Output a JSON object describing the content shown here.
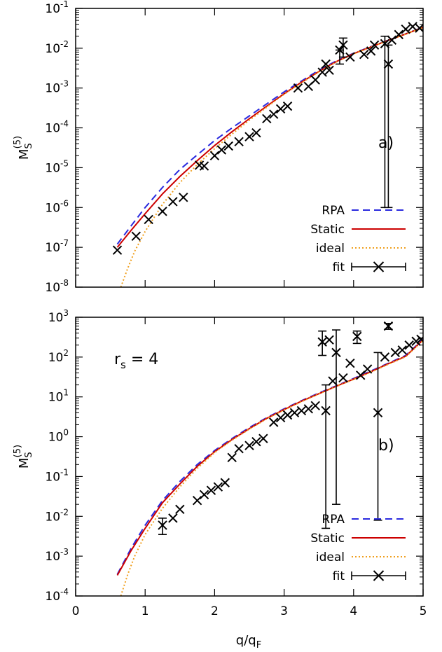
{
  "xlabel": {
    "main": "q/q",
    "sub": "F"
  },
  "ylabel": {
    "main": "M",
    "sub": "S",
    "sup": "(5)"
  },
  "legend": [
    {
      "label": "RPA",
      "color": "#2a2adf",
      "style": "dashed"
    },
    {
      "label": "Static",
      "color": "#cc0000",
      "style": "solid"
    },
    {
      "label": "ideal",
      "color": "#f0a020",
      "style": "dotted"
    },
    {
      "label": "fit",
      "color": "#000000",
      "style": "errorbar"
    }
  ],
  "chart_data": [
    {
      "type": "line",
      "panel_label": "a)",
      "annotation": "",
      "xscale": "linear",
      "yscale": "log",
      "xlim": [
        0,
        5
      ],
      "ylim": [
        1e-08,
        0.1
      ],
      "xticks": [
        0,
        1,
        2,
        3,
        4,
        5
      ],
      "yticks": [
        {
          "base": "10",
          "exp": "-8"
        },
        {
          "base": "10",
          "exp": "-7"
        },
        {
          "base": "10",
          "exp": "-6"
        },
        {
          "base": "10",
          "exp": "-5"
        },
        {
          "base": "10",
          "exp": "-4"
        },
        {
          "base": "10",
          "exp": "-3"
        },
        {
          "base": "10",
          "exp": "-2"
        },
        {
          "base": "10",
          "exp": "-1"
        }
      ],
      "show_xtick_labels": false,
      "legend_position": "bottom-right",
      "series": [
        {
          "name": "RPA",
          "style": "dashed",
          "x": [
            0.6,
            0.8,
            1.0,
            1.25,
            1.5,
            1.75,
            2.0,
            2.25,
            2.5,
            2.75,
            3.0,
            3.25,
            3.5,
            3.75,
            4.0,
            4.25,
            4.5,
            4.75,
            5.0
          ],
          "y": [
            1.2e-07,
            3.5e-07,
            1e-06,
            3.2e-06,
            9e-06,
            2.1e-05,
            4.8e-05,
            0.0001,
            0.0002,
            0.0004,
            0.0008,
            0.0015,
            0.0028,
            0.0048,
            0.0075,
            0.011,
            0.016,
            0.023,
            0.034
          ]
        },
        {
          "name": "Static",
          "style": "solid",
          "x": [
            0.6,
            0.8,
            1.0,
            1.25,
            1.5,
            1.75,
            2.0,
            2.25,
            2.5,
            2.75,
            3.0,
            3.25,
            3.5,
            3.75,
            4.0,
            4.25,
            4.5,
            4.75,
            5.0
          ],
          "y": [
            1e-07,
            2.7e-07,
            7e-07,
            2.2e-06,
            6e-06,
            1.5e-05,
            3.6e-05,
            8e-05,
            0.00017,
            0.00035,
            0.00072,
            0.0014,
            0.0026,
            0.0046,
            0.0073,
            0.0108,
            0.0158,
            0.0228,
            0.0335
          ]
        },
        {
          "name": "ideal",
          "style": "dotted",
          "x": [
            0.65,
            0.75,
            0.85,
            1.0,
            1.25,
            1.5,
            1.75,
            2.0,
            2.25,
            2.5,
            2.75,
            3.0,
            3.25,
            3.5,
            3.75,
            4.0,
            4.25,
            4.5,
            4.75,
            5.0
          ],
          "y": [
            1e-08,
            3e-08,
            8e-08,
            2.5e-07,
            1.2e-06,
            4.2e-06,
            1.2e-05,
            3e-05,
            7e-05,
            0.000155,
            0.00033,
            0.0007,
            0.00135,
            0.00255,
            0.0045,
            0.0072,
            0.0107,
            0.0157,
            0.0227,
            0.0335
          ]
        },
        {
          "name": "fit",
          "style": "errorbar",
          "points": [
            {
              "x": 0.6,
              "y": 8.5e-08
            },
            {
              "x": 0.87,
              "y": 1.9e-07
            },
            {
              "x": 1.05,
              "y": 5e-07
            },
            {
              "x": 1.25,
              "y": 8e-07
            },
            {
              "x": 1.4,
              "y": 1.4e-06
            },
            {
              "x": 1.55,
              "y": 1.8e-06
            },
            {
              "x": 1.78,
              "y": 1.15e-05
            },
            {
              "x": 1.85,
              "y": 1.1e-05
            },
            {
              "x": 2.0,
              "y": 2e-05
            },
            {
              "x": 2.1,
              "y": 2.8e-05
            },
            {
              "x": 2.2,
              "y": 3.5e-05
            },
            {
              "x": 2.35,
              "y": 4.5e-05
            },
            {
              "x": 2.5,
              "y": 6e-05
            },
            {
              "x": 2.6,
              "y": 7.5e-05
            },
            {
              "x": 2.75,
              "y": 0.00017
            },
            {
              "x": 2.85,
              "y": 0.00022
            },
            {
              "x": 2.95,
              "y": 0.0003
            },
            {
              "x": 3.05,
              "y": 0.00035
            },
            {
              "x": 3.2,
              "y": 0.001
            },
            {
              "x": 3.35,
              "y": 0.0011
            },
            {
              "x": 3.45,
              "y": 0.0016
            },
            {
              "x": 3.55,
              "y": 0.0025
            },
            {
              "x": 3.6,
              "y": 0.004
            },
            {
              "x": 3.65,
              "y": 0.0028
            },
            {
              "x": 3.8,
              "y": 0.009,
              "yerr": [
                0.004,
                0.009
              ]
            },
            {
              "x": 3.85,
              "y": 0.012,
              "yerr": [
                0.006,
                0.018
              ]
            },
            {
              "x": 3.95,
              "y": 0.006
            },
            {
              "x": 4.15,
              "y": 0.007
            },
            {
              "x": 4.25,
              "y": 0.0085
            },
            {
              "x": 4.3,
              "y": 0.012
            },
            {
              "x": 4.45,
              "y": 0.013,
              "yerr": [
                1e-06,
                0.02
              ]
            },
            {
              "x": 4.5,
              "y": 0.004,
              "yerr": [
                1e-06,
                0.012
              ]
            },
            {
              "x": 4.55,
              "y": 0.016
            },
            {
              "x": 4.65,
              "y": 0.022
            },
            {
              "x": 4.75,
              "y": 0.03
            },
            {
              "x": 4.85,
              "y": 0.035
            },
            {
              "x": 4.95,
              "y": 0.032
            }
          ]
        }
      ]
    },
    {
      "type": "line",
      "panel_label": "b)",
      "annotation": "rs = 4",
      "xscale": "linear",
      "yscale": "log",
      "xlim": [
        0,
        5
      ],
      "ylim": [
        0.0001,
        1000
      ],
      "xticks": [
        0,
        1,
        2,
        3,
        4,
        5
      ],
      "yticks": [
        {
          "base": "10",
          "exp": "-4"
        },
        {
          "base": "10",
          "exp": "-3"
        },
        {
          "base": "10",
          "exp": "-2"
        },
        {
          "base": "10",
          "exp": "-1"
        },
        {
          "base": "10",
          "exp": "0"
        },
        {
          "base": "10",
          "exp": "1"
        },
        {
          "base": "10",
          "exp": "2"
        },
        {
          "base": "10",
          "exp": "3"
        }
      ],
      "show_xtick_labels": true,
      "legend_position": "bottom-right",
      "series": [
        {
          "name": "RPA",
          "style": "dashed",
          "x": [
            0.6,
            0.8,
            1.0,
            1.25,
            1.5,
            1.75,
            2.0,
            2.25,
            2.5,
            2.75,
            3.0,
            3.25,
            3.5,
            3.75,
            4.0,
            4.25,
            4.5,
            4.75,
            5.0
          ],
          "y": [
            0.00035,
            0.0016,
            0.006,
            0.025,
            0.075,
            0.2,
            0.45,
            0.9,
            1.7,
            3.0,
            5.0,
            8.0,
            12.5,
            19,
            29,
            45,
            70,
            110,
            280
          ]
        },
        {
          "name": "Static",
          "style": "solid",
          "x": [
            0.6,
            0.8,
            1.0,
            1.25,
            1.5,
            1.75,
            2.0,
            2.25,
            2.5,
            2.75,
            3.0,
            3.25,
            3.5,
            3.75,
            4.0,
            4.25,
            4.5,
            4.75,
            5.0
          ],
          "y": [
            0.00033,
            0.0014,
            0.005,
            0.022,
            0.065,
            0.18,
            0.42,
            0.85,
            1.6,
            2.9,
            4.8,
            7.8,
            12,
            18.5,
            28,
            43,
            68,
            105,
            270
          ]
        },
        {
          "name": "ideal",
          "style": "dotted",
          "x": [
            0.65,
            0.75,
            0.85,
            1.0,
            1.25,
            1.5,
            1.75,
            2.0,
            2.25,
            2.5,
            2.75,
            3.0,
            3.25,
            3.5,
            3.75,
            4.0,
            4.25,
            4.5,
            4.75,
            5.0
          ],
          "y": [
            0.0001,
            0.00035,
            0.001,
            0.0035,
            0.016,
            0.055,
            0.16,
            0.4,
            0.82,
            1.55,
            2.8,
            4.7,
            7.6,
            11.8,
            18.2,
            27.5,
            42,
            66,
            102,
            260
          ]
        },
        {
          "name": "fit",
          "style": "errorbar",
          "points": [
            {
              "x": 1.25,
              "y": 0.006,
              "yerr": [
                0.0035,
                0.009
              ]
            },
            {
              "x": 1.4,
              "y": 0.009
            },
            {
              "x": 1.5,
              "y": 0.015
            },
            {
              "x": 1.75,
              "y": 0.025
            },
            {
              "x": 1.85,
              "y": 0.035
            },
            {
              "x": 1.95,
              "y": 0.045
            },
            {
              "x": 2.05,
              "y": 0.055
            },
            {
              "x": 2.15,
              "y": 0.07
            },
            {
              "x": 2.25,
              "y": 0.3
            },
            {
              "x": 2.35,
              "y": 0.5
            },
            {
              "x": 2.5,
              "y": 0.6
            },
            {
              "x": 2.6,
              "y": 0.75
            },
            {
              "x": 2.7,
              "y": 0.9
            },
            {
              "x": 2.85,
              "y": 2.3
            },
            {
              "x": 2.95,
              "y": 3.0
            },
            {
              "x": 3.05,
              "y": 3.5
            },
            {
              "x": 3.15,
              "y": 4.0
            },
            {
              "x": 3.25,
              "y": 4.5
            },
            {
              "x": 3.35,
              "y": 5.0
            },
            {
              "x": 3.45,
              "y": 6.0
            },
            {
              "x": 3.55,
              "y": 240,
              "yerr": [
                110,
                450
              ]
            },
            {
              "x": 3.6,
              "y": 4.5,
              "yerr": [
                0.005,
                20
              ]
            },
            {
              "x": 3.65,
              "y": 270
            },
            {
              "x": 3.7,
              "y": 25
            },
            {
              "x": 3.75,
              "y": 130,
              "yerr": [
                0.02,
                480
              ]
            },
            {
              "x": 3.85,
              "y": 30
            },
            {
              "x": 3.95,
              "y": 70
            },
            {
              "x": 4.05,
              "y": 330,
              "yerr": [
                220,
                450
              ]
            },
            {
              "x": 4.1,
              "y": 35
            },
            {
              "x": 4.2,
              "y": 50
            },
            {
              "x": 4.35,
              "y": 4.0,
              "yerr": [
                0.008,
                130
              ]
            },
            {
              "x": 4.45,
              "y": 100
            },
            {
              "x": 4.5,
              "y": 600,
              "yerr": [
                500,
                700
              ]
            },
            {
              "x": 4.6,
              "y": 130
            },
            {
              "x": 4.7,
              "y": 150
            },
            {
              "x": 4.8,
              "y": 200
            },
            {
              "x": 4.9,
              "y": 250
            },
            {
              "x": 4.97,
              "y": 280
            }
          ]
        }
      ]
    }
  ]
}
